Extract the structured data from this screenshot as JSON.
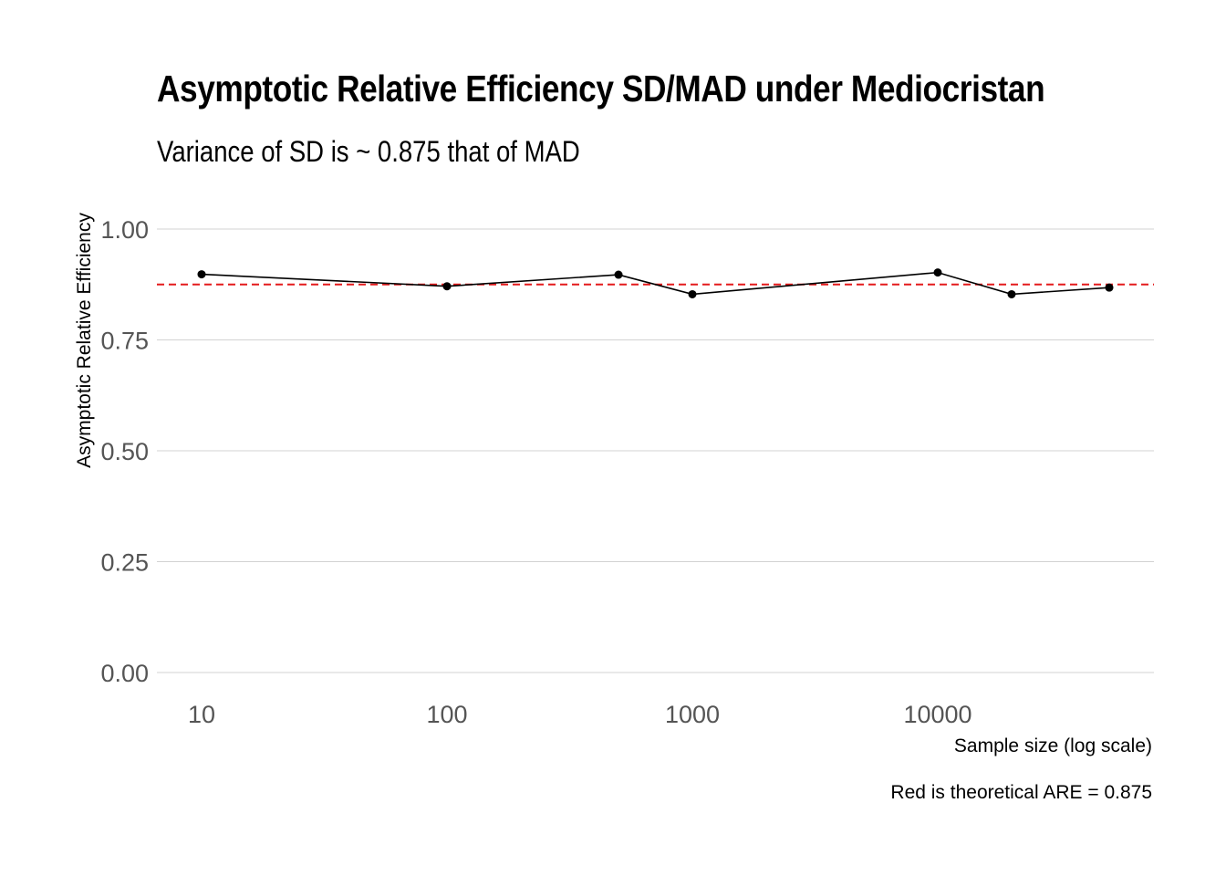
{
  "chart_data": {
    "type": "line",
    "title": "Asymptotic Relative Efficiency SD/MAD under Mediocristan",
    "subtitle": "Variance of SD is ~ 0.875 that of MAD",
    "xlabel": "Sample size (log scale)",
    "ylabel": "Asymptotic Relative Efficiency",
    "caption": "Red is theoretical ARE = 0.875",
    "x_scale": "log10",
    "xlim": [
      10,
      50000
    ],
    "ylim": [
      0,
      1
    ],
    "x_ticks": [
      10,
      100,
      1000,
      10000
    ],
    "x_tick_labels": [
      "10",
      "100",
      "1000",
      "10000"
    ],
    "y_ticks": [
      0,
      0.25,
      0.5,
      0.75,
      1
    ],
    "y_tick_labels": [
      "0.00",
      "0.25",
      "0.50",
      "0.75",
      "1.00"
    ],
    "grid": true,
    "series": [
      {
        "x": [
          10,
          100,
          500,
          1000,
          10000,
          20000,
          50000
        ],
        "y": [
          0.898,
          0.871,
          0.897,
          0.853,
          0.902,
          0.853,
          0.868
        ],
        "color": "#000000"
      }
    ],
    "reference_line": {
      "y": 0.875,
      "color": "#e41a1c",
      "style": "dashed"
    }
  }
}
